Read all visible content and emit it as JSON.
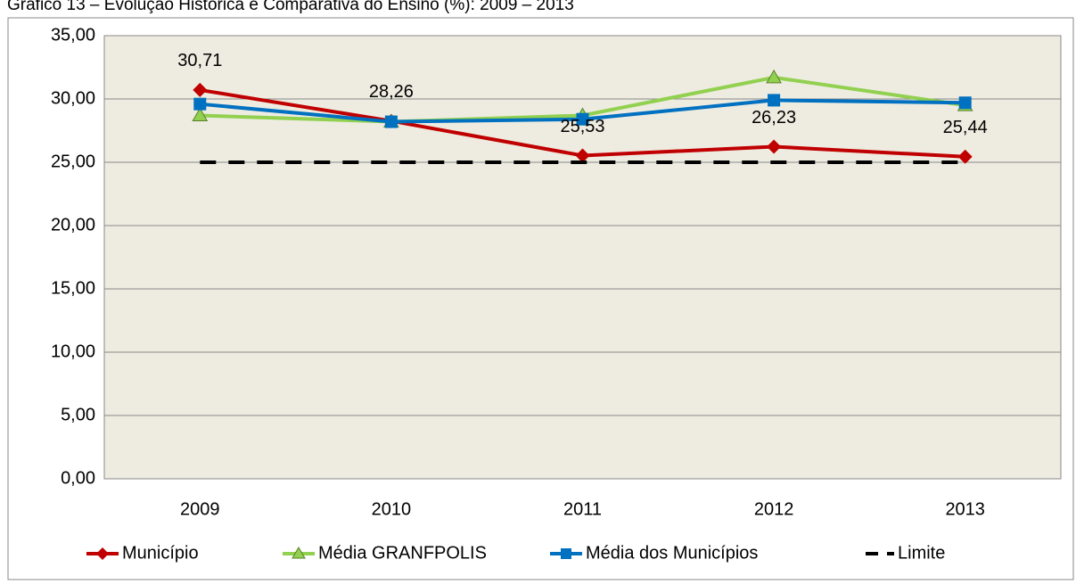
{
  "chart_data": {
    "type": "line",
    "title": "Gráfico 13 – Evolução Histórica e Comparativa do Ensino (%): 2009 – 2013",
    "categories": [
      "2009",
      "2010",
      "2011",
      "2012",
      "2013"
    ],
    "series": [
      {
        "name": "Município",
        "color": "#c00000",
        "marker": "diamond",
        "values": [
          30.71,
          28.26,
          25.53,
          26.23,
          25.44
        ],
        "value_labels": [
          "30,71",
          "28,26",
          "25,53",
          "26,23",
          "25,44"
        ]
      },
      {
        "name": "Média GRANFPOLIS",
        "color": "#92d050",
        "marker": "triangle",
        "values": [
          28.7,
          28.2,
          28.7,
          31.7,
          29.5
        ]
      },
      {
        "name": "Média dos Municípios",
        "color": "#0070c0",
        "marker": "square",
        "values": [
          29.6,
          28.2,
          28.4,
          29.9,
          29.7
        ]
      },
      {
        "name": "Limite",
        "color": "#000000",
        "dashed": true,
        "values": [
          25,
          25,
          25,
          25,
          25
        ]
      }
    ],
    "ylim": [
      0,
      35
    ],
    "yticks": [
      {
        "value": 0,
        "label": "0,00"
      },
      {
        "value": 5,
        "label": "5,00"
      },
      {
        "value": 10,
        "label": "10,00"
      },
      {
        "value": 15,
        "label": "15,00"
      },
      {
        "value": 20,
        "label": "20,00"
      },
      {
        "value": 25,
        "label": "25,00"
      },
      {
        "value": 30,
        "label": "30,00"
      },
      {
        "value": 35,
        "label": "35,00"
      }
    ],
    "grid": true,
    "legend": "bottom"
  }
}
